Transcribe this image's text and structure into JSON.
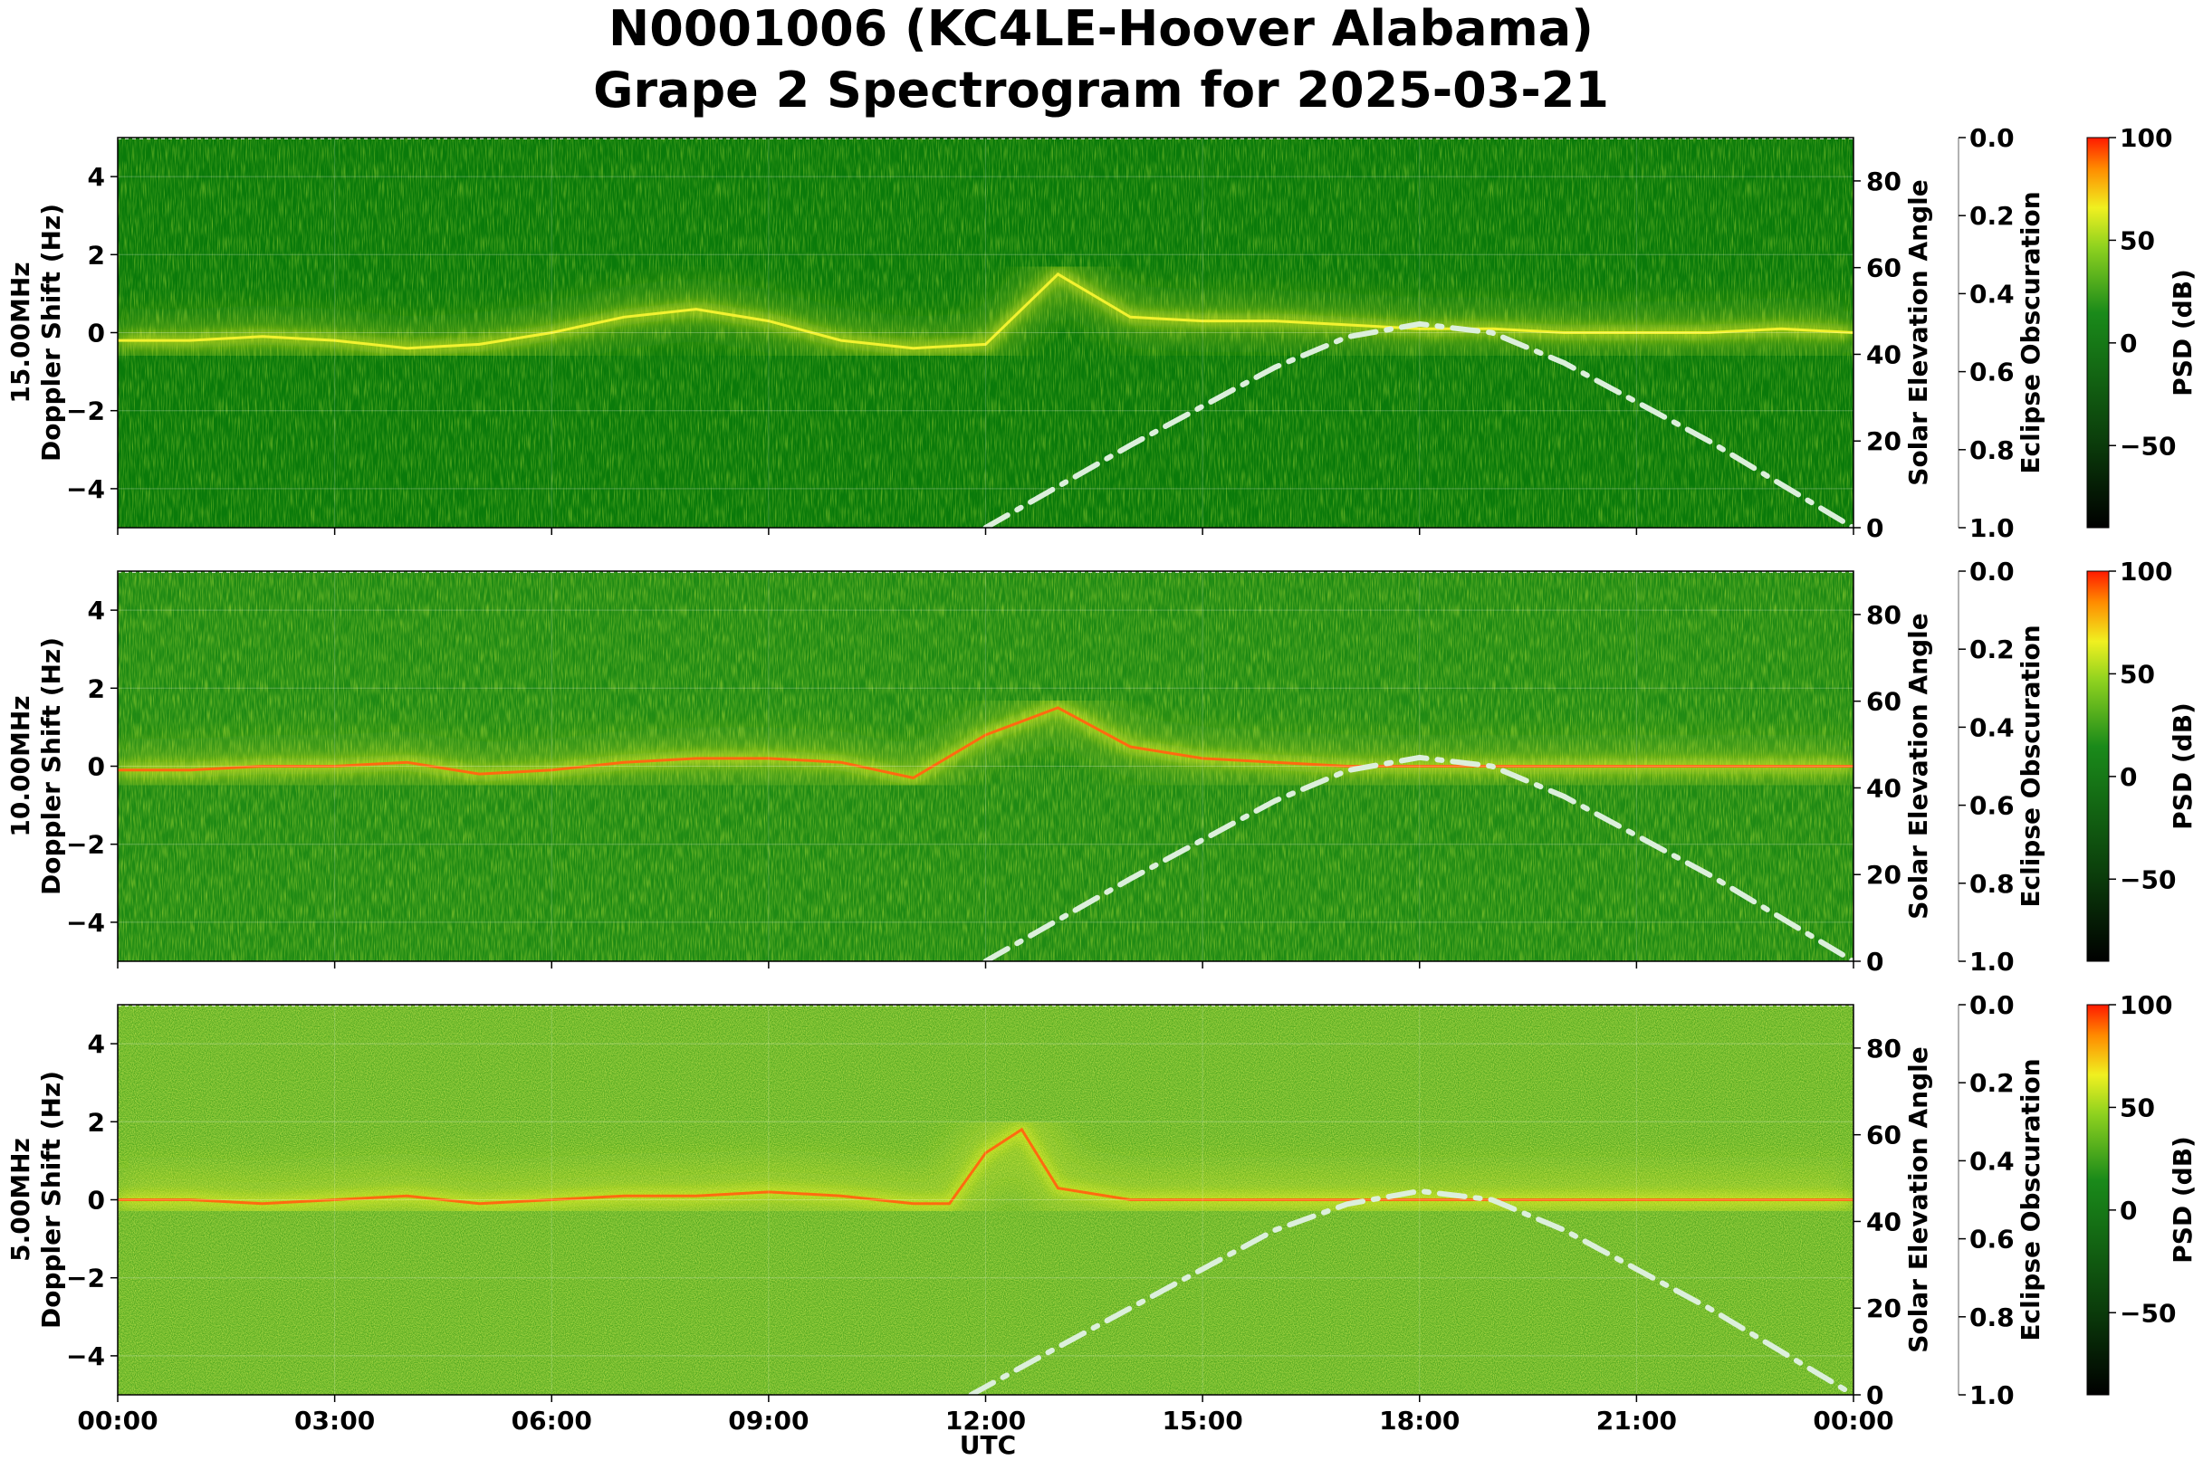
{
  "figure": {
    "title_line1": "N0001006 (KC4LE-Hoover Alabama)",
    "title_line2": "Grape 2 Spectrogram for 2025-03-21",
    "xlabel": "UTC"
  },
  "chart_data": [
    {
      "type": "heatmap",
      "frequency_label": "15.00MHz",
      "ylabel": "Doppler Shift (Hz)",
      "ylim": [
        -5,
        5
      ],
      "yticks": [
        4,
        2,
        0,
        -2,
        -4
      ],
      "xlim": [
        "00:00",
        "24:00"
      ],
      "xticks": [
        "00:00",
        "03:00",
        "06:00",
        "09:00",
        "12:00",
        "15:00",
        "18:00",
        "21:00",
        "00:00"
      ],
      "colorbar_label": "PSD (dB)",
      "colorbar_ticks": [
        100,
        50,
        0,
        -50
      ],
      "right_axis_label": "Solar Elevation Angle",
      "right_axis_ticks": [
        80,
        60,
        40,
        20,
        0
      ],
      "right_axis_lim": [
        0,
        90
      ],
      "eclipse_axis_label": "Eclipse Obscuration",
      "eclipse_axis_ticks": [
        "0.0",
        "0.2",
        "0.4",
        "0.6",
        "0.8",
        "1.0"
      ],
      "solar_elevation": {
        "x_hours": [
          12,
          13,
          14,
          15,
          16,
          17,
          18,
          19,
          20,
          21,
          22,
          23,
          24
        ],
        "values": [
          0,
          9.5,
          19,
          28,
          37,
          44,
          47,
          45,
          38,
          29,
          20,
          10,
          0
        ]
      },
      "doppler_trace": {
        "x_hours": [
          0,
          1,
          2,
          3,
          4,
          5,
          6,
          7,
          8,
          9,
          10,
          11,
          12,
          13,
          14,
          15,
          16,
          17,
          18,
          19,
          20,
          21,
          22,
          23,
          24
        ],
        "values": [
          -0.2,
          -0.2,
          -0.1,
          -0.2,
          -0.4,
          -0.3,
          0,
          0.4,
          0.6,
          0.3,
          -0.2,
          -0.4,
          -0.3,
          1.5,
          0.4,
          0.3,
          0.3,
          0.2,
          0.1,
          0.1,
          0,
          0,
          0,
          0.1,
          0
        ]
      }
    },
    {
      "type": "heatmap",
      "frequency_label": "10.00MHz",
      "ylabel": "Doppler Shift (Hz)",
      "ylim": [
        -5,
        5
      ],
      "yticks": [
        4,
        2,
        0,
        -2,
        -4
      ],
      "xlim": [
        "00:00",
        "24:00"
      ],
      "xticks": [
        "00:00",
        "03:00",
        "06:00",
        "09:00",
        "12:00",
        "15:00",
        "18:00",
        "21:00",
        "00:00"
      ],
      "colorbar_label": "PSD (dB)",
      "colorbar_ticks": [
        100,
        50,
        0,
        -50
      ],
      "right_axis_label": "Solar Elevation Angle",
      "right_axis_ticks": [
        80,
        60,
        40,
        20,
        0
      ],
      "right_axis_lim": [
        0,
        90
      ],
      "eclipse_axis_label": "Eclipse Obscuration",
      "eclipse_axis_ticks": [
        "0.0",
        "0.2",
        "0.4",
        "0.6",
        "0.8",
        "1.0"
      ],
      "solar_elevation": {
        "x_hours": [
          12,
          13,
          14,
          15,
          16,
          17,
          18,
          19,
          20,
          21,
          22,
          23,
          24
        ],
        "values": [
          0,
          9.5,
          19,
          28,
          37,
          44,
          47,
          45,
          38,
          29,
          20,
          10,
          0
        ]
      },
      "doppler_trace": {
        "x_hours": [
          0,
          1,
          2,
          3,
          4,
          5,
          6,
          7,
          8,
          9,
          10,
          11,
          12,
          13,
          14,
          15,
          16,
          17,
          18,
          19,
          20,
          21,
          22,
          23,
          24
        ],
        "values": [
          -0.1,
          -0.1,
          0,
          0,
          0.1,
          -0.2,
          -0.1,
          0.1,
          0.2,
          0.2,
          0.1,
          -0.3,
          0.8,
          1.5,
          0.5,
          0.2,
          0.1,
          0,
          0,
          0,
          0,
          0,
          0,
          0,
          0
        ]
      }
    },
    {
      "type": "heatmap",
      "frequency_label": "5.00MHz",
      "ylabel": "Doppler Shift (Hz)",
      "ylim": [
        -5,
        5
      ],
      "yticks": [
        4,
        2,
        0,
        -2,
        -4
      ],
      "xlim": [
        "00:00",
        "24:00"
      ],
      "xticks": [
        "00:00",
        "03:00",
        "06:00",
        "09:00",
        "12:00",
        "15:00",
        "18:00",
        "21:00",
        "00:00"
      ],
      "colorbar_label": "PSD (dB)",
      "colorbar_ticks": [
        100,
        50,
        0,
        -50
      ],
      "right_axis_label": "Solar Elevation Angle",
      "right_axis_ticks": [
        80,
        60,
        40,
        20,
        0
      ],
      "right_axis_lim": [
        0,
        90
      ],
      "eclipse_axis_label": "Eclipse Obscuration",
      "eclipse_axis_ticks": [
        "0.0",
        "0.2",
        "0.4",
        "0.6",
        "0.8",
        "1.0"
      ],
      "solar_elevation": {
        "x_hours": [
          11.8,
          13,
          14,
          15,
          16,
          17,
          18,
          19,
          20,
          21,
          22,
          23,
          24
        ],
        "values": [
          0,
          11,
          20,
          29,
          38,
          44,
          47,
          45,
          38,
          29,
          20,
          10,
          0
        ]
      },
      "doppler_trace": {
        "x_hours": [
          0,
          1,
          2,
          3,
          4,
          5,
          6,
          7,
          8,
          9,
          10,
          11,
          11.5,
          12,
          12.5,
          13,
          14,
          16,
          18,
          20,
          22,
          24
        ],
        "values": [
          0,
          0,
          -0.1,
          0,
          0.1,
          -0.1,
          0,
          0.1,
          0.1,
          0.2,
          0.1,
          -0.1,
          -0.1,
          1.2,
          1.8,
          0.3,
          0,
          0,
          0,
          0,
          0,
          0
        ]
      }
    }
  ],
  "colors": {
    "background_green": "#0a7a0a",
    "signal_yellow": "#e8f020",
    "signal_red": "#ff2a00",
    "solar_curve": "#dcefdc"
  }
}
